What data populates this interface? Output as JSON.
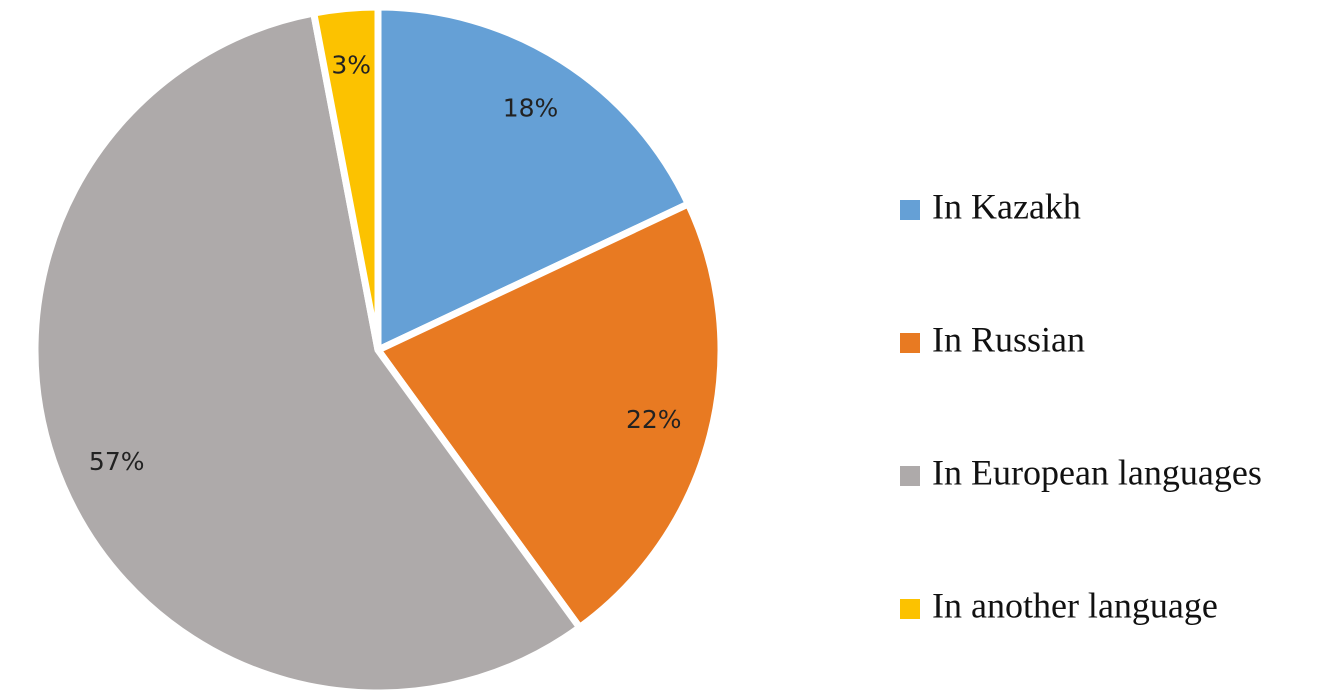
{
  "chart_data": {
    "type": "pie",
    "categories": [
      "In Kazakh",
      "In Russian",
      "In European languages",
      "In another language"
    ],
    "values": [
      18,
      22,
      57,
      3
    ],
    "value_labels": [
      "18%",
      "22%",
      "57%",
      "3%"
    ],
    "colors": [
      "#65a0d6",
      "#e87a22",
      "#aeaaaa",
      "#fcc200"
    ],
    "legend": "right"
  }
}
